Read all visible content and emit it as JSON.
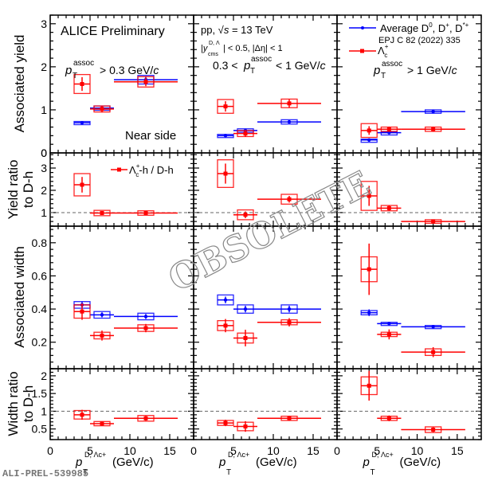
{
  "watermark": "OBSOLETE",
  "figure_id": "ALI-PREL-539985",
  "chart_data": {
    "type": "scatter",
    "layout": "4 rows x 3 columns grid of panels sharing x axis per column",
    "xlabel_main": "p",
    "xlabel_sub": "T",
    "xlabel_sup": "D, Λc+",
    "xlabel_unit": "(GeV/c)",
    "xlim": [
      0,
      18
    ],
    "xticks": [
      0,
      5,
      10,
      15
    ],
    "columns": [
      {
        "label": "pT assoc > 0.3 GeV/c"
      },
      {
        "label": "0.3 < pT assoc < 1 GeV/c"
      },
      {
        "label": "pT assoc > 1 GeV/c"
      }
    ],
    "annotations": {
      "alice": "ALICE Preliminary",
      "near_side": "Near side",
      "col0_cut_pre": "p",
      "col0_cut_sup": "assoc",
      "col0_cut_sub": "T",
      "col0_cut_post": "> 0.3 GeV/c",
      "col1_energy": "pp, √s = 13 TeV",
      "col1_rapidity": "|y cms D,Λc| < 0.5, |Δη| < 1",
      "col1_cut_pre": "0.3 <",
      "col1_cut_post": "< 1 GeV/c",
      "col2_cut_post": "> 1 GeV/c"
    },
    "legend": {
      "placement": "top-right",
      "entries": [
        {
          "name": "Average D0, D+, D*+",
          "sub": "EPJ C 82 (2022) 335",
          "color": "#0000ff"
        },
        {
          "name": "Λc+",
          "color": "#ff0000"
        }
      ],
      "ratio_entry": "Λc+-h / D-h"
    },
    "rows": [
      {
        "ylabel": "Associated yield",
        "ylim": [
          0,
          3.2
        ],
        "yticks": [
          0,
          1,
          2,
          3
        ],
        "reference_line": null,
        "panels": [
          {
            "series": [
              {
                "name": "D",
                "color": "#0000ff",
                "points": [
                  {
                    "x": 4,
                    "xerr": 0,
                    "y": 0.7,
                    "yerr": 0.02,
                    "sys": 0.03
                  },
                  {
                    "x": 6.5,
                    "xerr": 1.5,
                    "y": 1.04,
                    "yerr": 0.04,
                    "sys": 0.05
                  },
                  {
                    "x": 12,
                    "xerr": 4,
                    "y": 1.7,
                    "yerr": 0.08,
                    "sys": 0.1
                  }
                ]
              },
              {
                "name": "Lc",
                "color": "#ff0000",
                "points": [
                  {
                    "x": 4,
                    "xerr": 1,
                    "y": 1.6,
                    "yerr": 0.16,
                    "sys": 0.22
                  },
                  {
                    "x": 6.5,
                    "xerr": 1.5,
                    "y": 1.02,
                    "yerr": 0.08,
                    "sys": 0.07
                  },
                  {
                    "x": 12,
                    "xerr": 4,
                    "y": 1.65,
                    "yerr": 0.1,
                    "sys": 0.12
                  }
                ]
              }
            ]
          },
          {
            "series": [
              {
                "name": "D",
                "color": "#0000ff",
                "points": [
                  {
                    "x": 4,
                    "xerr": 1,
                    "y": 0.4,
                    "yerr": 0.02,
                    "sys": 0.03
                  },
                  {
                    "x": 6.5,
                    "xerr": 1.5,
                    "y": 0.52,
                    "yerr": 0.03,
                    "sys": 0.04
                  },
                  {
                    "x": 12,
                    "xerr": 4,
                    "y": 0.72,
                    "yerr": 0.03,
                    "sys": 0.05
                  }
                ]
              },
              {
                "name": "Lc",
                "color": "#ff0000",
                "points": [
                  {
                    "x": 4,
                    "xerr": 1,
                    "y": 1.08,
                    "yerr": 0.12,
                    "sys": 0.16
                  },
                  {
                    "x": 6.5,
                    "xerr": 1.5,
                    "y": 0.45,
                    "yerr": 0.08,
                    "sys": 0.07
                  },
                  {
                    "x": 12,
                    "xerr": 4,
                    "y": 1.15,
                    "yerr": 0.1,
                    "sys": 0.1
                  }
                ]
              }
            ]
          },
          {
            "series": [
              {
                "name": "D",
                "color": "#0000ff",
                "points": [
                  {
                    "x": 4,
                    "xerr": 1,
                    "y": 0.3,
                    "yerr": 0.01,
                    "sys": 0.02
                  },
                  {
                    "x": 6.5,
                    "xerr": 1.5,
                    "y": 0.47,
                    "yerr": 0.02,
                    "sys": 0.02
                  },
                  {
                    "x": 12,
                    "xerr": 4,
                    "y": 0.96,
                    "yerr": 0.03,
                    "sys": 0.04
                  }
                ]
              },
              {
                "name": "Lc",
                "color": "#ff0000",
                "points": [
                  {
                    "x": 4,
                    "xerr": 1,
                    "y": 0.52,
                    "yerr": 0.1,
                    "sys": 0.16
                  },
                  {
                    "x": 6.5,
                    "xerr": 1.5,
                    "y": 0.55,
                    "yerr": 0.06,
                    "sys": 0.05
                  },
                  {
                    "x": 12,
                    "xerr": 4,
                    "y": 0.55,
                    "yerr": 0.06,
                    "sys": 0.05
                  }
                ]
              }
            ]
          }
        ]
      },
      {
        "ylabel": "Yield ratio to D-h",
        "ylim": [
          0.39,
          3.68
        ],
        "yticks": [
          1,
          2,
          3
        ],
        "reference_line": 1,
        "panels": [
          {
            "series": [
              {
                "name": "Lc/D",
                "color": "#ff0000",
                "points": [
                  {
                    "x": 4,
                    "xerr": 1,
                    "y": 2.25,
                    "yerr": 0.35,
                    "sys": 0.5
                  },
                  {
                    "x": 6.5,
                    "xerr": 1.5,
                    "y": 0.98,
                    "yerr": 0.07,
                    "sys": 0.12
                  },
                  {
                    "x": 12,
                    "xerr": 4,
                    "y": 0.98,
                    "yerr": 0.06,
                    "sys": 0.1
                  }
                ]
              }
            ]
          },
          {
            "series": [
              {
                "name": "Lc/D",
                "color": "#ff0000",
                "points": [
                  {
                    "x": 4,
                    "xerr": 1,
                    "y": 2.75,
                    "yerr": 0.45,
                    "sys": 0.62
                  },
                  {
                    "x": 6.5,
                    "xerr": 1.5,
                    "y": 0.9,
                    "yerr": 0.15,
                    "sys": 0.22
                  },
                  {
                    "x": 12,
                    "xerr": 4,
                    "y": 1.6,
                    "yerr": 0.15,
                    "sys": 0.22
                  }
                ]
              }
            ]
          },
          {
            "series": [
              {
                "name": "Lc/D",
                "color": "#ff0000",
                "points": [
                  {
                    "x": 4,
                    "xerr": 1,
                    "y": 1.75,
                    "yerr": 0.45,
                    "sys": 0.65
                  },
                  {
                    "x": 6.5,
                    "xerr": 1.5,
                    "y": 1.2,
                    "yerr": 0.12,
                    "sys": 0.12
                  },
                  {
                    "x": 12,
                    "xerr": 4,
                    "y": 0.6,
                    "yerr": 0.04,
                    "sys": 0.08
                  }
                ]
              }
            ]
          }
        ]
      },
      {
        "ylabel": "Associated width",
        "ylim": [
          0.04,
          0.9
        ],
        "yticks": [
          0.2,
          0.4,
          0.6,
          0.8
        ],
        "reference_line": null,
        "panels": [
          {
            "series": [
              {
                "name": "D",
                "color": "#0000ff",
                "points": [
                  {
                    "x": 4,
                    "xerr": 1,
                    "y": 0.425,
                    "yerr": 0.02,
                    "sys": 0.02
                  },
                  {
                    "x": 6.5,
                    "xerr": 1.5,
                    "y": 0.365,
                    "yerr": 0.015,
                    "sys": 0.02
                  },
                  {
                    "x": 12,
                    "xerr": 4,
                    "y": 0.355,
                    "yerr": 0.015,
                    "sys": 0.02
                  }
                ]
              },
              {
                "name": "Lc",
                "color": "#ff0000",
                "points": [
                  {
                    "x": 4,
                    "xerr": 1,
                    "y": 0.385,
                    "yerr": 0.05,
                    "sys": 0.04
                  },
                  {
                    "x": 6.5,
                    "xerr": 1.5,
                    "y": 0.24,
                    "yerr": 0.03,
                    "sys": 0.02
                  },
                  {
                    "x": 12,
                    "xerr": 4,
                    "y": 0.285,
                    "yerr": 0.025,
                    "sys": 0.02
                  }
                ]
              }
            ]
          },
          {
            "series": [
              {
                "name": "D",
                "color": "#0000ff",
                "points": [
                  {
                    "x": 4,
                    "xerr": 1,
                    "y": 0.455,
                    "yerr": 0.02,
                    "sys": 0.03
                  },
                  {
                    "x": 6.5,
                    "xerr": 1.5,
                    "y": 0.4,
                    "yerr": 0.02,
                    "sys": 0.025
                  },
                  {
                    "x": 12,
                    "xerr": 4,
                    "y": 0.4,
                    "yerr": 0.02,
                    "sys": 0.025
                  }
                ]
              },
              {
                "name": "Lc",
                "color": "#ff0000",
                "points": [
                  {
                    "x": 4,
                    "xerr": 1,
                    "y": 0.3,
                    "yerr": 0.04,
                    "sys": 0.03
                  },
                  {
                    "x": 6.5,
                    "xerr": 1.5,
                    "y": 0.225,
                    "yerr": 0.05,
                    "sys": 0.03
                  },
                  {
                    "x": 12,
                    "xerr": 4,
                    "y": 0.32,
                    "yerr": 0.025,
                    "sys": 0.015
                  }
                ]
              }
            ]
          },
          {
            "series": [
              {
                "name": "D",
                "color": "#0000ff",
                "points": [
                  {
                    "x": 4,
                    "xerr": 1,
                    "y": 0.378,
                    "yerr": 0.02,
                    "sys": 0.013
                  },
                  {
                    "x": 6.5,
                    "xerr": 1.5,
                    "y": 0.312,
                    "yerr": 0.01,
                    "sys": 0.008
                  },
                  {
                    "x": 12,
                    "xerr": 4,
                    "y": 0.293,
                    "yerr": 0.01,
                    "sys": 0.008
                  }
                ]
              },
              {
                "name": "Lc",
                "color": "#ff0000",
                "points": [
                  {
                    "x": 4,
                    "xerr": 1,
                    "y": 0.64,
                    "yerr": 0.155,
                    "sys": 0.075
                  },
                  {
                    "x": 6.5,
                    "xerr": 1.5,
                    "y": 0.247,
                    "yerr": 0.03,
                    "sys": 0.013
                  },
                  {
                    "x": 12,
                    "xerr": 4,
                    "y": 0.14,
                    "yerr": 0.03,
                    "sys": 0.02
                  }
                ]
              }
            ]
          }
        ]
      },
      {
        "ylabel": "Width ratio to D-h",
        "ylim": [
          0.2,
          2.2
        ],
        "yticks": [
          0.5,
          1,
          1.5,
          2
        ],
        "reference_line": 1,
        "panels": [
          {
            "series": [
              {
                "name": "Lc/D",
                "color": "#ff0000",
                "points": [
                  {
                    "x": 4,
                    "xerr": 1,
                    "y": 0.9,
                    "yerr": 0.14,
                    "sys": 0.12
                  },
                  {
                    "x": 6.5,
                    "xerr": 1.5,
                    "y": 0.65,
                    "yerr": 0.06,
                    "sys": 0.06
                  },
                  {
                    "x": 12,
                    "xerr": 4,
                    "y": 0.8,
                    "yerr": 0.07,
                    "sys": 0.08
                  }
                ]
              }
            ]
          },
          {
            "series": [
              {
                "name": "Lc/D",
                "color": "#ff0000",
                "points": [
                  {
                    "x": 4,
                    "xerr": 1,
                    "y": 0.67,
                    "yerr": 0.09,
                    "sys": 0.07
                  },
                  {
                    "x": 6.5,
                    "xerr": 1.5,
                    "y": 0.57,
                    "yerr": 0.15,
                    "sys": 0.12
                  },
                  {
                    "x": 12,
                    "xerr": 4,
                    "y": 0.8,
                    "yerr": 0.07,
                    "sys": 0.06
                  }
                ]
              }
            ]
          },
          {
            "series": [
              {
                "name": "Lc/D",
                "color": "#ff0000",
                "points": [
                  {
                    "x": 4,
                    "xerr": 1,
                    "y": 1.72,
                    "yerr": 0.42,
                    "sys": 0.25
                  },
                  {
                    "x": 6.5,
                    "xerr": 1.5,
                    "y": 0.8,
                    "yerr": 0.08,
                    "sys": 0.06
                  },
                  {
                    "x": 12,
                    "xerr": 4,
                    "y": 0.48,
                    "yerr": 0.07,
                    "sys": 0.08
                  }
                ]
              }
            ]
          }
        ]
      }
    ]
  }
}
